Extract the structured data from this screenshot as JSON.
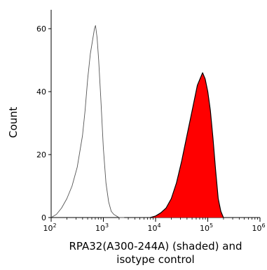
{
  "chart_data": {
    "type": "area",
    "xlabel_line1": "RPA32(A300-244A) (shaded) and",
    "xlabel_line2": "isotype control",
    "ylabel": "Count",
    "x_scale": "log",
    "x_range": [
      100,
      1000000
    ],
    "y_range": [
      0,
      66
    ],
    "y_ticks": [
      0,
      20,
      40,
      60
    ],
    "x_ticks": [
      {
        "value": 100,
        "base": "10",
        "exp": "2"
      },
      {
        "value": 1000,
        "base": "10",
        "exp": "3"
      },
      {
        "value": 10000,
        "base": "10",
        "exp": "4"
      },
      {
        "value": 100000,
        "base": "10",
        "exp": "5"
      },
      {
        "value": 1000000,
        "base": "10",
        "exp": "6"
      }
    ],
    "grid": false,
    "legend": "none",
    "series": [
      {
        "role": "isotype control (unshaded outline)",
        "color": "#555555",
        "fill": "none",
        "x": [
          100,
          126,
          158,
          200,
          251,
          316,
          398,
          447,
          501,
          562,
          631,
          676,
          708,
          759,
          813,
          891,
          1000,
          1122,
          1259,
          1413,
          1585,
          1778,
          2000,
          2512
        ],
        "y": [
          0,
          1,
          3,
          6,
          10,
          16,
          26,
          34,
          44,
          52,
          57,
          60,
          61,
          57,
          50,
          38,
          22,
          11,
          5,
          2,
          1,
          0.5,
          0,
          0
        ]
      },
      {
        "role": "RPA32(A300-244A) (shaded)",
        "color": "#ff0000",
        "fill": "#ff0000",
        "x": [
          7943,
          10000,
          12589,
          15849,
          19953,
          25119,
          31623,
          39811,
          50119,
          56234,
          63096,
          70795,
          79433,
          89125,
          100000,
          112202,
          125893,
          141254,
          158489,
          177828,
          199526
        ],
        "y": [
          0,
          0.5,
          1.5,
          3,
          6,
          11,
          18,
          26,
          34,
          38,
          42,
          44,
          46,
          44,
          40,
          34,
          25,
          15,
          6,
          2,
          0
        ]
      }
    ]
  }
}
